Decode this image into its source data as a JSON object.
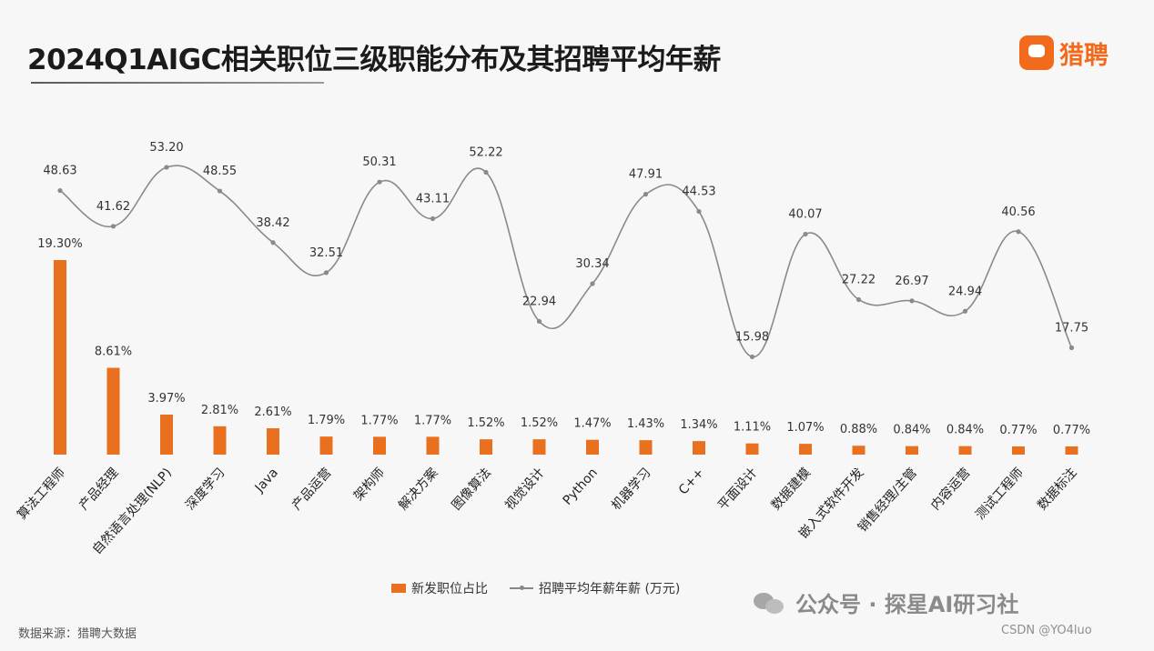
{
  "title": "2024Q1AIGC相关职位三级职能分布及其招聘平均年薪",
  "brand": {
    "name": "猎聘",
    "logo_icon": "liepin-logo-icon"
  },
  "legend": {
    "bar_label": "新发职位占比",
    "line_label": "招聘平均年薪年薪 (万元)"
  },
  "source": "数据来源：猎聘大数据",
  "watermark": "公众号 · 探星AI研习社",
  "csdn": "CSDN @YO4luo",
  "colors": {
    "bar": "#e8701f",
    "line": "#8a8a8a",
    "text": "#333333"
  },
  "chart_data": {
    "type": "bar",
    "categories": [
      "算法工程师",
      "产品经理",
      "自然语言处理(NLP)",
      "深度学习",
      "Java",
      "产品运营",
      "架构师",
      "解决方案",
      "图像算法",
      "视觉设计",
      "Python",
      "机器学习",
      "C++",
      "平面设计",
      "数据建模",
      "嵌入式软件开发",
      "销售经理/主管",
      "内容运营",
      "测试工程师",
      "数据标注"
    ],
    "series": [
      {
        "name": "新发职位占比",
        "type": "bar",
        "values": [
          19.3,
          8.61,
          3.97,
          2.81,
          2.61,
          1.79,
          1.77,
          1.77,
          1.52,
          1.52,
          1.47,
          1.43,
          1.34,
          1.11,
          1.07,
          0.88,
          0.84,
          0.84,
          0.77,
          0.77
        ],
        "labels": [
          "19.30%",
          "8.61%",
          "3.97%",
          "2.81%",
          "2.61%",
          "1.79%",
          "1.77%",
          "1.77%",
          "1.52%",
          "1.52%",
          "1.47%",
          "1.43%",
          "1.34%",
          "1.11%",
          "1.07%",
          "0.88%",
          "0.84%",
          "0.84%",
          "0.77%",
          "0.77%"
        ]
      },
      {
        "name": "招聘平均年薪年薪 (万元)",
        "type": "line",
        "values": [
          48.63,
          41.62,
          53.2,
          48.55,
          38.42,
          32.51,
          50.31,
          43.11,
          52.22,
          22.94,
          30.34,
          47.91,
          44.53,
          15.98,
          40.07,
          27.22,
          26.97,
          24.94,
          40.56,
          17.75
        ],
        "labels": [
          "48.63",
          "41.62",
          "53.20",
          "48.55",
          "38.42",
          "32.51",
          "50.31",
          "43.11",
          "52.22",
          "22.94",
          "30.34",
          "47.91",
          "44.53",
          "15.98",
          "40.07",
          "27.22",
          "26.97",
          "24.94",
          "40.56",
          "17.75"
        ]
      }
    ],
    "bar_ylim": [
      0,
      20
    ],
    "line_ylim": [
      10,
      60
    ],
    "grid": false,
    "legend_position": "bottom"
  }
}
